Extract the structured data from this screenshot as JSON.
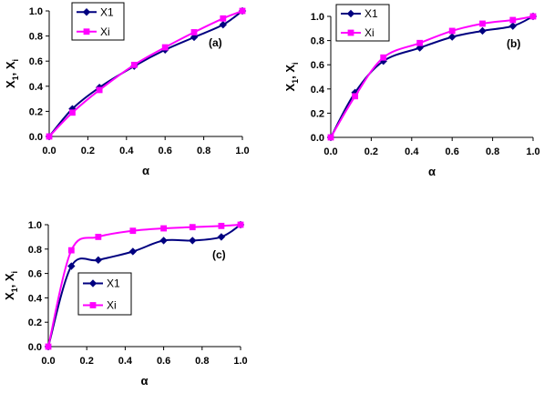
{
  "colors": {
    "x1": "#000080",
    "xi": "#ff00ff"
  },
  "chart_data": [
    {
      "type": "line",
      "panel_label": "(a)",
      "xlabel": "α",
      "ylabel_main": "X",
      "ylabel_sub1": "1",
      "ylabel_sep": ", X",
      "ylabel_sub2": "i",
      "xlim": [
        0,
        1
      ],
      "ylim": [
        0,
        1
      ],
      "xticks": [
        "0.0",
        "0.2",
        "0.4",
        "0.6",
        "0.8",
        "1.0"
      ],
      "yticks": [
        "0.0",
        "0.2",
        "0.4",
        "0.6",
        "0.8",
        "1.0"
      ],
      "legend_position": "top-left",
      "series": [
        {
          "name": "X1",
          "marker": "diamond",
          "x": [
            0,
            0.12,
            0.26,
            0.44,
            0.6,
            0.75,
            0.9,
            1.0
          ],
          "y": [
            0,
            0.22,
            0.39,
            0.56,
            0.69,
            0.79,
            0.89,
            1.0
          ]
        },
        {
          "name": "Xi",
          "marker": "square",
          "x": [
            0,
            0.12,
            0.26,
            0.44,
            0.6,
            0.75,
            0.9,
            1.0
          ],
          "y": [
            0,
            0.19,
            0.37,
            0.57,
            0.71,
            0.83,
            0.94,
            1.0
          ]
        }
      ]
    },
    {
      "type": "line",
      "panel_label": "(b)",
      "xlabel": "α",
      "ylabel_main": "X",
      "ylabel_sub1": "1",
      "ylabel_sep": ", X",
      "ylabel_sub2": "i",
      "xlim": [
        0,
        1
      ],
      "ylim": [
        0,
        1
      ],
      "xticks": [
        "0.0",
        "0.2",
        "0.4",
        "0.6",
        "0.8",
        "1.0"
      ],
      "yticks": [
        "0.0",
        "0.2",
        "0.4",
        "0.6",
        "0.8",
        "1.0"
      ],
      "legend_position": "top-left",
      "series": [
        {
          "name": "X1",
          "marker": "diamond",
          "x": [
            0,
            0.12,
            0.26,
            0.44,
            0.6,
            0.75,
            0.9,
            1.0
          ],
          "y": [
            0,
            0.37,
            0.63,
            0.74,
            0.83,
            0.88,
            0.92,
            1.0
          ]
        },
        {
          "name": "Xi",
          "marker": "square",
          "x": [
            0,
            0.12,
            0.26,
            0.44,
            0.6,
            0.75,
            0.9,
            1.0
          ],
          "y": [
            0,
            0.34,
            0.66,
            0.78,
            0.88,
            0.94,
            0.97,
            1.0
          ]
        }
      ]
    },
    {
      "type": "line",
      "panel_label": "(c)",
      "xlabel": "α",
      "ylabel_main": "X",
      "ylabel_sub1": "1",
      "ylabel_sep": ", X",
      "ylabel_sub2": "i",
      "xlim": [
        0,
        1
      ],
      "ylim": [
        0,
        1
      ],
      "xticks": [
        "0.0",
        "0.2",
        "0.4",
        "0.6",
        "0.8",
        "1.0"
      ],
      "yticks": [
        "0.0",
        "0.2",
        "0.4",
        "0.6",
        "0.8",
        "1.0"
      ],
      "legend_position": "lower-left",
      "series": [
        {
          "name": "X1",
          "marker": "diamond",
          "x": [
            0,
            0.12,
            0.26,
            0.44,
            0.6,
            0.75,
            0.9,
            1.0
          ],
          "y": [
            0,
            0.66,
            0.71,
            0.78,
            0.87,
            0.87,
            0.9,
            1.0
          ]
        },
        {
          "name": "Xi",
          "marker": "square",
          "x": [
            0,
            0.12,
            0.26,
            0.44,
            0.6,
            0.75,
            0.9,
            1.0
          ],
          "y": [
            0,
            0.79,
            0.9,
            0.95,
            0.97,
            0.98,
            0.99,
            1.0
          ]
        }
      ]
    }
  ]
}
